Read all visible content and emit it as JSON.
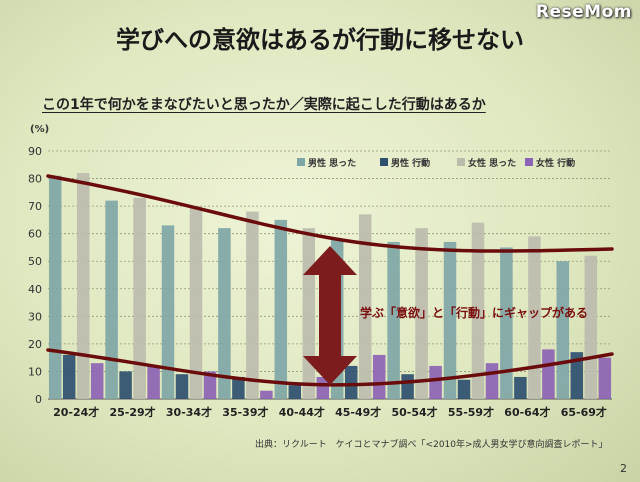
{
  "logo": "ReseMom",
  "slide_title": "学びへの意欲はあるが行動に移せない",
  "page_number": "2",
  "source": "出典：リクルート　ケイコとマナブ調べ「<2010年>成人男女学び意向調査レポート」",
  "colors": {
    "male_think": "#7fa6a6",
    "male_act": "#2e4f70",
    "female_think": "#bcbcae",
    "female_act": "#8c63b4",
    "curve": "#6a0c0c",
    "arrow": "#7c1c1c"
  },
  "chart_data": {
    "type": "bar",
    "title": "この1年で何かをまなびたいと思ったか／実際に起こした行動はあるか",
    "unit": "(%)",
    "categories": [
      "20-24才",
      "25-29才",
      "30-34才",
      "35-39才",
      "40-44才",
      "45-49才",
      "50-54才",
      "55-59才",
      "60-64才",
      "65-69才"
    ],
    "series": [
      {
        "name": "男性 思った",
        "values": [
          81,
          72,
          63,
          62,
          65,
          58,
          57,
          57,
          55,
          50
        ]
      },
      {
        "name": "男性 行動",
        "values": [
          16,
          10,
          9,
          8,
          5,
          12,
          9,
          7,
          8,
          17
        ]
      },
      {
        "name": "女性 思った",
        "values": [
          82,
          73,
          70,
          68,
          62,
          67,
          62,
          64,
          59,
          52
        ]
      },
      {
        "name": "女性 行動",
        "values": [
          13,
          12,
          10,
          3,
          8,
          16,
          12,
          13,
          18,
          15
        ]
      }
    ],
    "ylim": [
      0,
      90
    ],
    "yticks": [
      0,
      10,
      20,
      30,
      40,
      50,
      60,
      70,
      80,
      90
    ],
    "grid": true,
    "legend_position": "top-right",
    "annotation": "学ぶ「意欲」と「行動」にギャップがある"
  }
}
